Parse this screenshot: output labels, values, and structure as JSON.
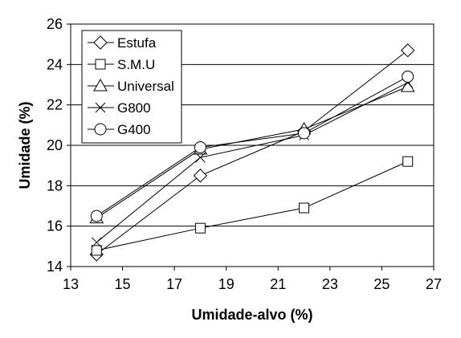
{
  "chart_data": {
    "type": "line",
    "xlabel": "Umidade-alvo (%)",
    "ylabel": "Umidade (%)",
    "xlim": [
      13,
      27
    ],
    "ylim": [
      14,
      26
    ],
    "xticks": [
      13,
      15,
      17,
      19,
      21,
      23,
      25,
      27
    ],
    "yticks": [
      14,
      16,
      18,
      20,
      22,
      24,
      26
    ],
    "grid": "horizontal",
    "legend_position": "top-left",
    "x": [
      14,
      18,
      22,
      26
    ],
    "series": [
      {
        "name": "Estufa",
        "marker": "diamond",
        "values": [
          14.6,
          18.5,
          20.7,
          24.7
        ]
      },
      {
        "name": "S.M.U",
        "marker": "square",
        "values": [
          14.8,
          15.9,
          16.9,
          19.2
        ]
      },
      {
        "name": "Universal",
        "marker": "triangle",
        "values": [
          16.4,
          19.8,
          20.8,
          22.9
        ]
      },
      {
        "name": "G800",
        "marker": "x",
        "values": [
          15.2,
          19.4,
          20.5,
          23.1
        ]
      },
      {
        "name": "G400",
        "marker": "circle",
        "values": [
          16.5,
          19.9,
          20.6,
          23.4
        ]
      }
    ]
  }
}
